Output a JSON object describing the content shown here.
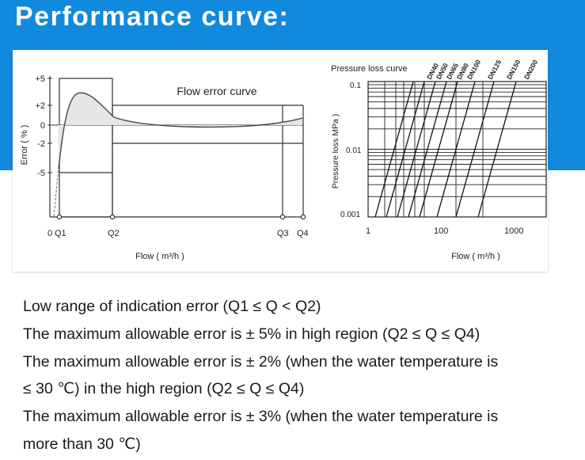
{
  "header": {
    "title": "Performance curve:",
    "background_color": "#1189dd"
  },
  "flow_error_chart": {
    "title": "Flow error curve",
    "y_label": "Error ( % )",
    "x_label": "Flow ( m³/h )",
    "y_ticks": [
      "+5",
      "+2",
      "0",
      "-2",
      "-5"
    ],
    "x_ticks": [
      "0",
      "Q1",
      "Q2",
      "Q3",
      "Q4"
    ]
  },
  "pressure_chart": {
    "title": "Pressure loss curve",
    "y_label": "Pressure loss MPa )",
    "x_label": "Flow ( m³/h )",
    "y_ticks": [
      "0.1",
      "0.01",
      "0.001"
    ],
    "x_ticks": [
      "1",
      "100",
      "1000"
    ],
    "series_labels": [
      "DN40",
      "DN50",
      "DN65",
      "DN80",
      "DN100",
      "DN125",
      "DN150",
      "DN200"
    ]
  },
  "spec_lines": [
    "Low range of indication error (Q1 ≤ Q < Q2)",
    "The maximum allowable error is ± 5% in high region (Q2 ≤ Q ≤ Q4)",
    "The maximum allowable error is ± 2% (when the water temperature is",
    "≤ 30 ℃) in the high region (Q2 ≤ Q ≤ Q4)",
    "The maximum allowable error is ± 3% (when the water temperature is",
    "more than 30 ℃)"
  ]
}
